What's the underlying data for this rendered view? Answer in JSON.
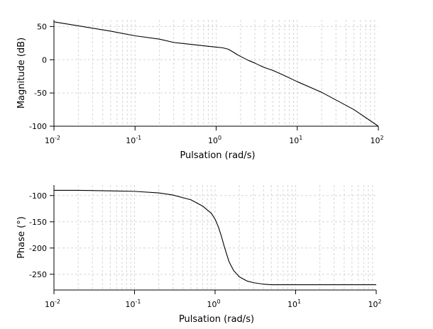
{
  "chart_data": [
    {
      "type": "line",
      "xscale": "log",
      "xlim": [
        0.01,
        100
      ],
      "ylim": [
        -100,
        60
      ],
      "xlabel": "Pulsation (rad/s)",
      "ylabel": "Magnitude (dB)",
      "grid": true,
      "line_color": "#000000",
      "xticks": [
        {
          "base": "10",
          "exp": "-2",
          "value": 0.01
        },
        {
          "base": "10",
          "exp": "-1",
          "value": 0.1
        },
        {
          "base": "10",
          "exp": "0",
          "value": 1
        },
        {
          "base": "10",
          "exp": "1",
          "value": 10
        },
        {
          "base": "10",
          "exp": "2",
          "value": 100
        }
      ],
      "yticks": [
        50,
        0,
        -50,
        -100
      ],
      "series": [
        {
          "x": [
            0.01,
            0.02,
            0.05,
            0.1,
            0.2,
            0.3,
            0.5,
            0.7,
            1.0,
            1.2,
            1.4,
            1.6,
            1.8,
            2.0,
            2.5,
            3.0,
            3.5,
            4.0,
            5.0,
            7.0,
            10,
            20,
            50,
            100
          ],
          "y": [
            57,
            51,
            43,
            36,
            31,
            26,
            23,
            21,
            19,
            18,
            16,
            12,
            8,
            5,
            -1,
            -5,
            -9,
            -12,
            -16,
            -24,
            -33,
            -49,
            -75,
            -100
          ]
        }
      ]
    },
    {
      "type": "line",
      "xscale": "log",
      "xlim": [
        0.01,
        100
      ],
      "ylim": [
        -280,
        -80
      ],
      "xlabel": "Pulsation (rad/s)",
      "ylabel": "Phase (°)",
      "grid": true,
      "line_color": "#000000",
      "xticks": [
        {
          "base": "10",
          "exp": "-2",
          "value": 0.01
        },
        {
          "base": "10",
          "exp": "-1",
          "value": 0.1
        },
        {
          "base": "10",
          "exp": "0",
          "value": 1
        },
        {
          "base": "10",
          "exp": "1",
          "value": 10
        },
        {
          "base": "10",
          "exp": "2",
          "value": 100
        }
      ],
      "yticks": [
        -100,
        -150,
        -200,
        -250
      ],
      "series": [
        {
          "x": [
            0.01,
            0.02,
            0.05,
            0.1,
            0.2,
            0.3,
            0.5,
            0.7,
            0.9,
            1.0,
            1.1,
            1.2,
            1.3,
            1.4,
            1.5,
            1.7,
            2.0,
            2.5,
            3.0,
            4.0,
            5.0,
            7.0,
            10,
            20,
            50,
            100
          ],
          "y": [
            -90,
            -90,
            -91,
            -92,
            -95,
            -99,
            -108,
            -120,
            -134,
            -145,
            -160,
            -178,
            -197,
            -213,
            -227,
            -243,
            -255,
            -263,
            -266,
            -269,
            -270,
            -270,
            -270,
            -270,
            -270,
            -270
          ]
        }
      ]
    }
  ]
}
